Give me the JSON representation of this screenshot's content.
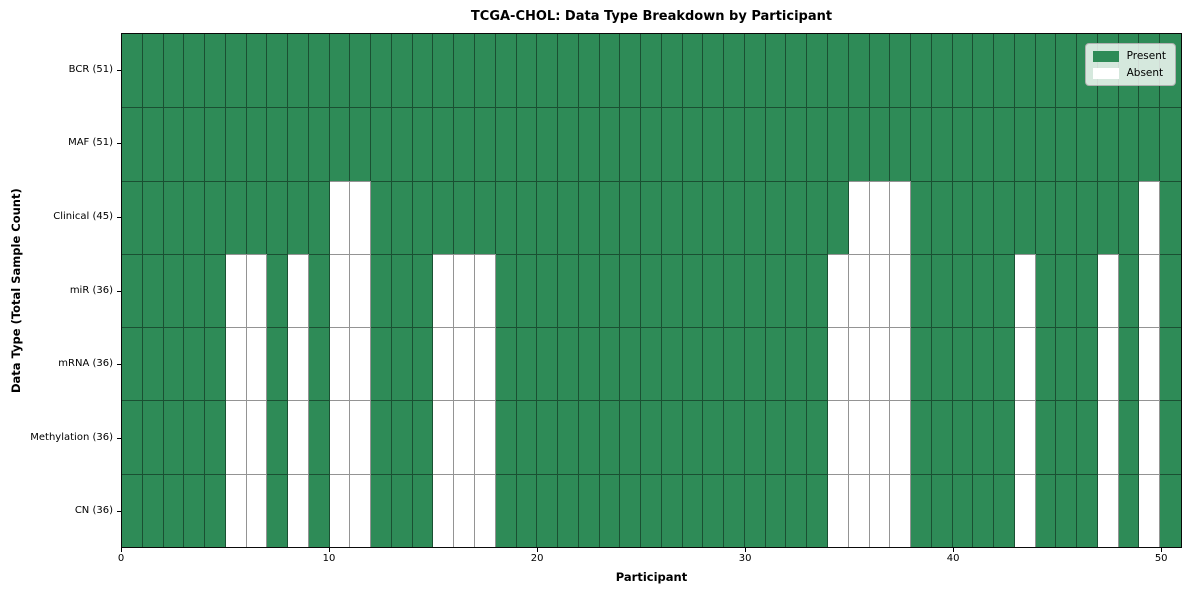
{
  "chart_data": {
    "type": "heatmap",
    "title": "TCGA-CHOL: Data Type Breakdown by Participant",
    "xlabel": "Participant",
    "ylabel": "Data Type (Total Sample Count)",
    "n_participants": 51,
    "x_ticks": [
      0,
      10,
      20,
      30,
      40,
      50
    ],
    "colors": {
      "present": "#2e8b57",
      "absent": "#ffffff",
      "grid": "rgba(0,0,0,0.42)"
    },
    "legend": {
      "position": "upper right",
      "items": [
        {
          "label": "Present",
          "color": "#2e8b57"
        },
        {
          "label": "Absent",
          "color": "#ffffff"
        }
      ]
    },
    "rows": [
      {
        "label": "BCR (51)",
        "name": "BCR",
        "total": 51,
        "absent_participants": []
      },
      {
        "label": "MAF (51)",
        "name": "MAF",
        "total": 51,
        "absent_participants": []
      },
      {
        "label": "Clinical (45)",
        "name": "Clinical",
        "total": 45,
        "absent_participants": [
          10,
          11,
          35,
          36,
          37,
          49
        ]
      },
      {
        "label": "miR (36)",
        "name": "miR",
        "total": 36,
        "absent_participants": [
          5,
          6,
          8,
          10,
          11,
          15,
          16,
          17,
          34,
          35,
          36,
          37,
          43,
          47,
          49
        ]
      },
      {
        "label": "mRNA (36)",
        "name": "mRNA",
        "total": 36,
        "absent_participants": [
          5,
          6,
          8,
          10,
          11,
          15,
          16,
          17,
          34,
          35,
          36,
          37,
          43,
          47,
          49
        ]
      },
      {
        "label": "Methylation (36)",
        "name": "Methylation",
        "total": 36,
        "absent_participants": [
          5,
          6,
          8,
          10,
          11,
          15,
          16,
          17,
          34,
          35,
          36,
          37,
          43,
          47,
          49
        ]
      },
      {
        "label": "CN (36)",
        "name": "CN",
        "total": 36,
        "absent_participants": [
          5,
          6,
          8,
          10,
          11,
          15,
          16,
          17,
          34,
          35,
          36,
          37,
          43,
          47,
          49
        ]
      }
    ]
  }
}
